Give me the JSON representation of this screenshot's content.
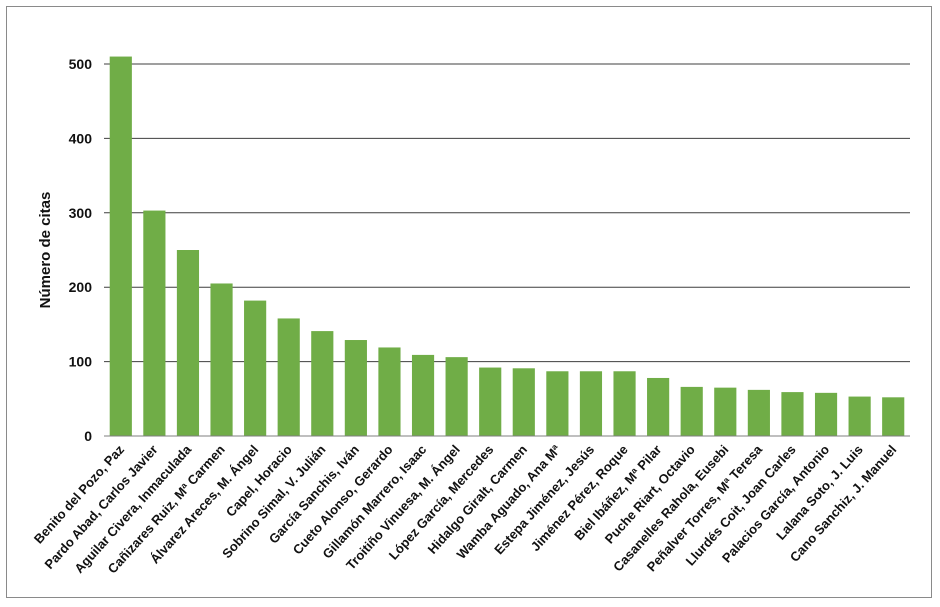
{
  "chart_data": {
    "type": "bar",
    "title": "",
    "xlabel": "",
    "ylabel": "Número de citas",
    "ylim": [
      0,
      500
    ],
    "yticks": [
      0,
      100,
      200,
      300,
      400,
      500
    ],
    "grid": true,
    "legend": "none",
    "colors": {
      "bar": "#70ad47",
      "grid": "#3f3f3f",
      "axis": "#7f7f7f"
    },
    "categories": [
      "Benito del Pozo, Paz",
      "Pardo Abad, Carlos Javier",
      "Aguilar Civera, Inmaculada",
      "Cañizares Ruiz, Mª Carmen",
      "Álvarez Areces, M. Ángel",
      "Capel, Horacio",
      "Sobrino Simal, V. Julián",
      "García Sanchis, Iván",
      "Cueto Alonso, Gerardo",
      "Gillamón Marrero, Isaac",
      "Troitiño Vinuesa, M. Ángel",
      "López García, Mercedes",
      "Hidalgo Giralt, Carmen",
      "Wamba Aguado, Ana Mª",
      "Estepa Jiménez, Jesús",
      "Jiménez Pérez, Roque",
      "Biel Ibáñez, Mª Pilar",
      "Puche Riart, Octavio",
      "Casanelles Rahola, Eusebi",
      "Peñalver Torres, Mª Teresa",
      "Llurdés Coit, Joan Carles",
      "Palacios García, Antonio",
      "Lalana Soto, J. Luis",
      "Cano Sanchiz, J. Manuel"
    ],
    "values": [
      510,
      303,
      250,
      205,
      182,
      158,
      141,
      129,
      119,
      109,
      106,
      92,
      91,
      87,
      87,
      87,
      78,
      66,
      65,
      62,
      59,
      58,
      53,
      52
    ]
  }
}
